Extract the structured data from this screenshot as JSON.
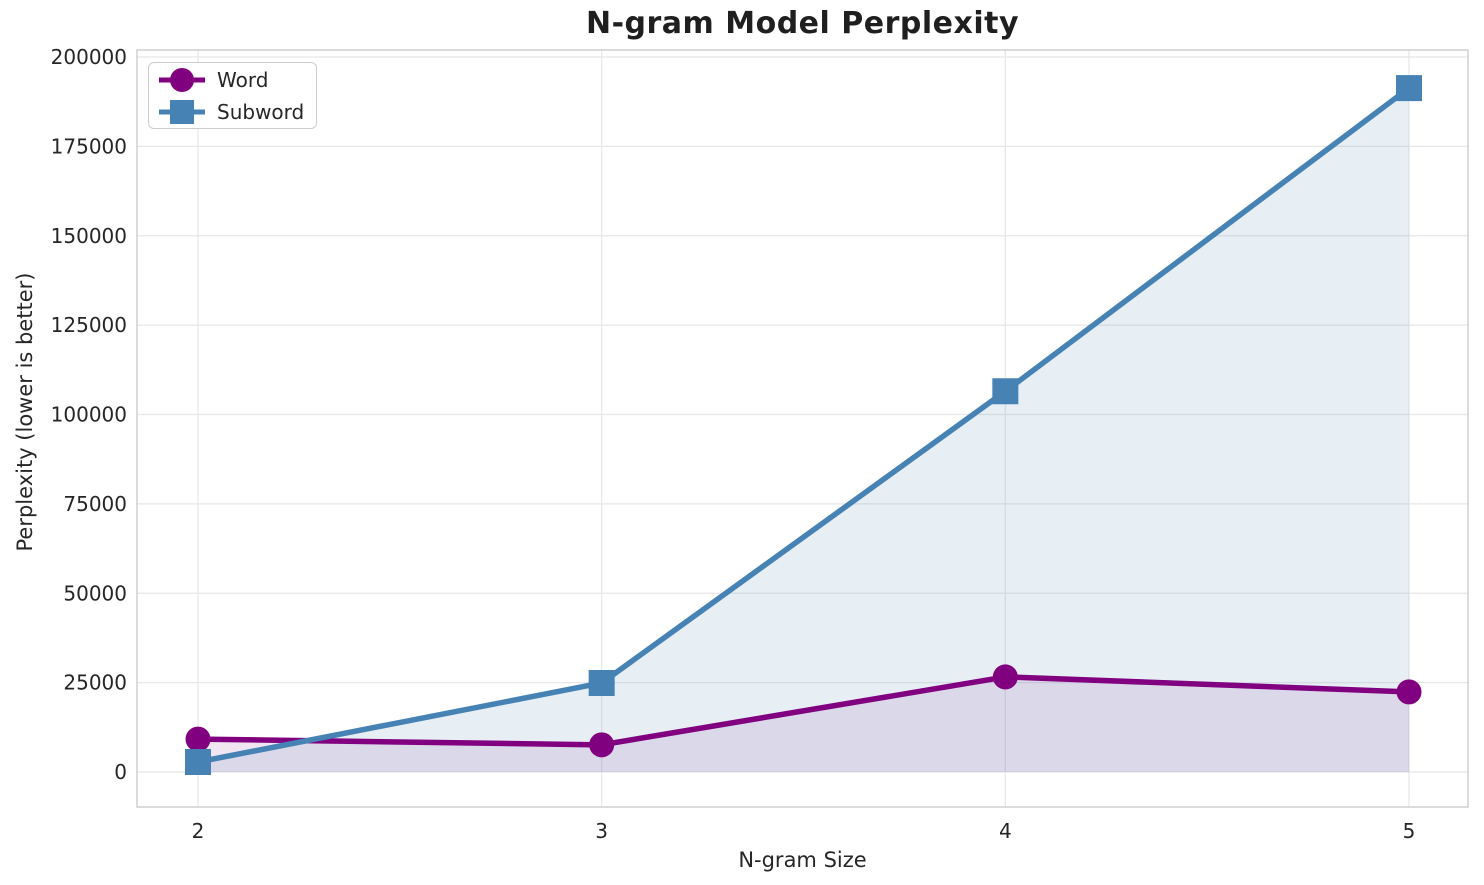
{
  "chart_data": {
    "type": "line",
    "title": "N-gram Model Perplexity",
    "xlabel": "N-gram Size",
    "ylabel": "Perplexity (lower is better)",
    "x": [
      2,
      3,
      4,
      5
    ],
    "series": [
      {
        "name": "Word",
        "marker": "circle",
        "color": "#800080",
        "fill_alpha": 0.1,
        "values": [
          9200,
          7600,
          26600,
          22400
        ]
      },
      {
        "name": "Subword",
        "marker": "square",
        "color": "#4682B4",
        "fill_alpha": 0.13,
        "values": [
          2800,
          24900,
          106500,
          191300
        ]
      }
    ],
    "xticks": [
      2,
      3,
      4,
      5
    ],
    "yticks": [
      0,
      25000,
      50000,
      75000,
      100000,
      125000,
      150000,
      175000,
      200000
    ],
    "ylim": [
      0,
      200000
    ],
    "grid": true,
    "area_fill": true,
    "legend_position": "upper left",
    "grid_color": "#e7e7ea",
    "spine_color": "#cccccc",
    "text_color": "#262626"
  }
}
